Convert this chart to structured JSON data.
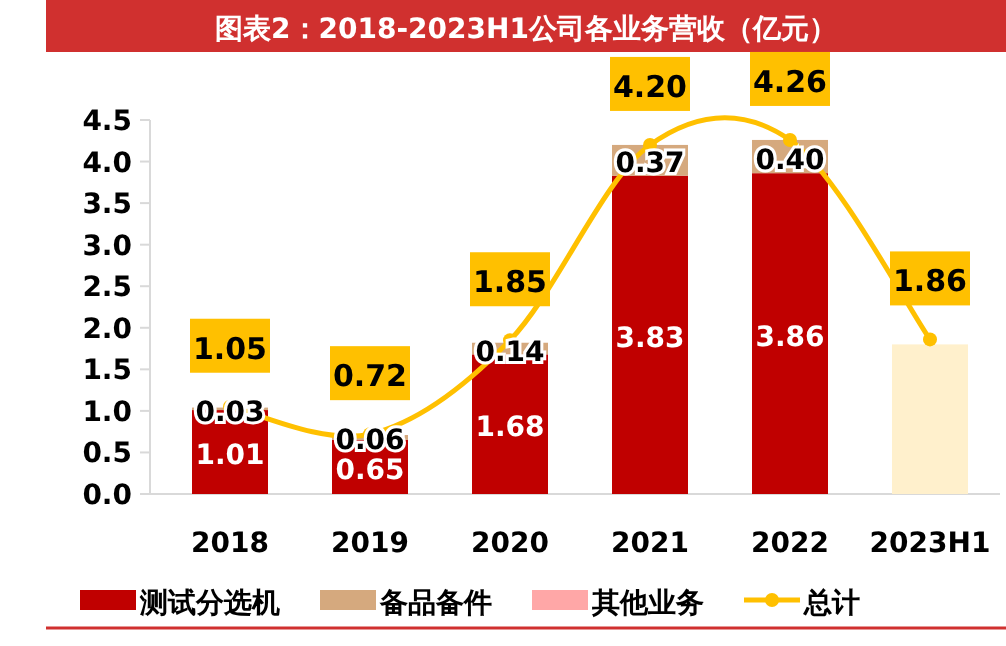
{
  "chart_data": {
    "type": "bar",
    "stacked": true,
    "title": "图表2：2018-2023H1公司各业务营收（亿元）",
    "categories": [
      "2018",
      "2019",
      "2020",
      "2021",
      "2022",
      "2023H1"
    ],
    "series": [
      {
        "name": "测试分选机",
        "color": "#c00000",
        "values": [
          1.01,
          0.65,
          1.68,
          3.83,
          3.86,
          null
        ],
        "value_labels": [
          "1.01",
          "0.65",
          "1.68",
          "3.83",
          "3.86",
          null
        ]
      },
      {
        "name": "备品备件",
        "color": "#d5a97e",
        "values": [
          0.03,
          0.06,
          0.14,
          0.37,
          0.4,
          null
        ],
        "value_labels": [
          "0.03",
          "0.06",
          "0.14",
          "0.37",
          "0.40",
          null
        ]
      },
      {
        "name": "其他业务",
        "color": "#ffa7a7",
        "values": [
          null,
          null,
          null,
          null,
          null,
          null
        ]
      },
      {
        "color": "#fff0cc",
        "values": [
          null,
          null,
          null,
          null,
          null,
          1.8
        ]
      },
      {
        "name": "总计",
        "type": "line",
        "color": "#ffc000",
        "marker": "circle",
        "values": [
          1.05,
          0.72,
          1.85,
          4.2,
          4.26,
          1.86
        ],
        "value_labels": [
          "1.05",
          "0.72",
          "1.85",
          "4.20",
          "4.26",
          "1.86"
        ]
      }
    ],
    "ylim": [
      0,
      4.5
    ],
    "yticks": [
      {
        "value": 0,
        "label": "0.0"
      },
      {
        "value": 0.5,
        "label": "0.5"
      },
      {
        "value": 1,
        "label": "1.0"
      },
      {
        "value": 1.5,
        "label": "1.5"
      },
      {
        "value": 2,
        "label": "2.0"
      },
      {
        "value": 2.5,
        "label": "2.5"
      },
      {
        "value": 3,
        "label": "3.0"
      },
      {
        "value": 3.5,
        "label": "3.5"
      },
      {
        "value": 4,
        "label": "4.0"
      },
      {
        "value": 4.5,
        "label": "4.5"
      }
    ],
    "grid": false,
    "legend": "bottom"
  }
}
